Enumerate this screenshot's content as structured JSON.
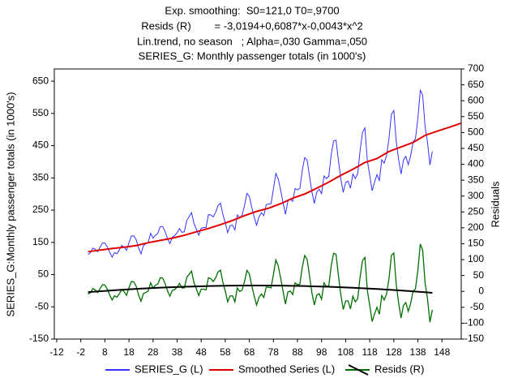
{
  "chart_data": {
    "type": "line",
    "title_lines": [
      "Exp. smoothing:  S0=121,0 T0=,9700",
      "Resids (R)        = -3,0194+0,6087*x-0,0043*x^2",
      "Lin.trend, no season   ; Alpha=,030 Gamma=,050",
      "SERIES_G: Monthly passenger totals (in 1000's)"
    ],
    "ylabel": "SERIES_G:Monthly passenger totals (in 1000's)",
    "y2label": "Residuals",
    "xlim": [
      -13,
      156
    ],
    "xticks": [
      -12,
      -2,
      8,
      18,
      28,
      38,
      48,
      58,
      68,
      78,
      88,
      98,
      108,
      118,
      128,
      138,
      148
    ],
    "ylim": [
      -150,
      688
    ],
    "yticks": [
      -150,
      -50,
      50,
      150,
      250,
      350,
      450,
      550,
      650
    ],
    "y2lim": [
      -150,
      700
    ],
    "y2ticks": [
      -150,
      -100,
      -50,
      0,
      50,
      100,
      150,
      200,
      250,
      300,
      350,
      400,
      450,
      500,
      550,
      600,
      650,
      700
    ],
    "grid": false,
    "legend": "bottom",
    "x": [
      1,
      2,
      3,
      4,
      5,
      6,
      7,
      8,
      9,
      10,
      11,
      12,
      13,
      14,
      15,
      16,
      17,
      18,
      19,
      20,
      21,
      22,
      23,
      24,
      25,
      26,
      27,
      28,
      29,
      30,
      31,
      32,
      33,
      34,
      35,
      36,
      37,
      38,
      39,
      40,
      41,
      42,
      43,
      44,
      45,
      46,
      47,
      48,
      49,
      50,
      51,
      52,
      53,
      54,
      55,
      56,
      57,
      58,
      59,
      60,
      61,
      62,
      63,
      64,
      65,
      66,
      67,
      68,
      69,
      70,
      71,
      72,
      73,
      74,
      75,
      76,
      77,
      78,
      79,
      80,
      81,
      82,
      83,
      84,
      85,
      86,
      87,
      88,
      89,
      90,
      91,
      92,
      93,
      94,
      95,
      96,
      97,
      98,
      99,
      100,
      101,
      102,
      103,
      104,
      105,
      106,
      107,
      108,
      109,
      110,
      111,
      112,
      113,
      114,
      115,
      116,
      117,
      118,
      119,
      120,
      121,
      122,
      123,
      124,
      125,
      126,
      127,
      128,
      129,
      130,
      131,
      132,
      133,
      134,
      135,
      136,
      137,
      138,
      139,
      140,
      141,
      142,
      143,
      144
    ],
    "series": [
      {
        "name": "SERIES_G (L)",
        "color": "#3333ff",
        "axis": "y",
        "values": [
          112,
          118,
          132,
          129,
          121,
          135,
          148,
          148,
          136,
          119,
          104,
          118,
          115,
          126,
          141,
          135,
          125,
          149,
          170,
          170,
          158,
          133,
          114,
          140,
          145,
          150,
          178,
          163,
          172,
          178,
          199,
          199,
          184,
          162,
          146,
          166,
          171,
          180,
          193,
          181,
          183,
          218,
          230,
          242,
          209,
          191,
          172,
          194,
          196,
          196,
          236,
          235,
          229,
          243,
          264,
          272,
          237,
          211,
          180,
          201,
          204,
          188,
          235,
          227,
          234,
          264,
          302,
          293,
          259,
          229,
          203,
          229,
          242,
          233,
          267,
          269,
          270,
          315,
          364,
          347,
          312,
          274,
          237,
          278,
          284,
          277,
          317,
          313,
          318,
          374,
          413,
          405,
          355,
          306,
          271,
          306,
          315,
          301,
          356,
          348,
          355,
          422,
          465,
          467,
          404,
          347,
          305,
          336,
          340,
          318,
          362,
          348,
          363,
          435,
          491,
          505,
          404,
          359,
          310,
          337,
          360,
          342,
          406,
          396,
          420,
          472,
          548,
          559,
          463,
          407,
          362,
          405,
          417,
          391,
          419,
          461,
          472,
          535,
          622,
          606,
          508,
          461,
          390,
          432
        ]
      },
      {
        "name": "Smoothed Series (L)",
        "color": "#e00000",
        "axis": "y",
        "x": [
          1,
          6,
          11,
          16,
          21,
          26,
          31,
          36,
          41,
          46,
          51,
          56,
          61,
          66,
          71,
          76,
          81,
          86,
          91,
          96,
          101,
          106,
          111,
          116,
          121,
          126,
          131,
          136,
          141,
          146,
          151,
          156
        ],
        "values": [
          121,
          126,
          131,
          135,
          140,
          149,
          156,
          163,
          172,
          183,
          193,
          205,
          218,
          233,
          246,
          256,
          270,
          287,
          300,
          318,
          337,
          358,
          377,
          398,
          410,
          432,
          446,
          460,
          482,
          495,
          507,
          520
        ]
      },
      {
        "name": "Resids (R)",
        "color": "#007000",
        "axis": "y2",
        "values": [
          -9,
          -4,
          9,
          5,
          -4,
          9,
          21,
          20,
          7,
          -11,
          -27,
          -14,
          -18,
          -8,
          6,
          -1,
          -12,
          11,
          31,
          30,
          16,
          -11,
          -31,
          -7,
          -3,
          1,
          27,
          11,
          19,
          23,
          43,
          42,
          25,
          2,
          -15,
          3,
          6,
          13,
          25,
          11,
          11,
          44,
          54,
          64,
          28,
          8,
          -13,
          7,
          7,
          5,
          43,
          40,
          31,
          43,
          61,
          67,
          29,
          1,
          -33,
          -14,
          -14,
          -33,
          11,
          0,
          4,
          31,
          66,
          55,
          18,
          -14,
          -43,
          -19,
          -8,
          -19,
          13,
          13,
          11,
          53,
          99,
          80,
          42,
          1,
          -40,
          -2,
          1,
          -10,
          27,
          21,
          23,
          77,
          113,
          101,
          48,
          -5,
          -43,
          -12,
          -7,
          -25,
          27,
          15,
          18,
          81,
          120,
          117,
          50,
          -11,
          -57,
          -30,
          -30,
          -55,
          -15,
          -33,
          -23,
          45,
          97,
          107,
          4,
          -44,
          -95,
          -71,
          -50,
          -72,
          -13,
          -27,
          -8,
          40,
          113,
          121,
          22,
          -36,
          -84,
          -44,
          -35,
          -63,
          -38,
          1,
          8,
          67,
          149,
          129,
          26,
          -23,
          -97,
          -58
        ]
      }
    ],
    "trend_line": {
      "color": "#000000",
      "axis": "y2",
      "x": [
        1,
        11,
        21,
        31,
        41,
        51,
        61,
        71,
        81,
        91,
        101,
        111,
        121,
        131,
        141,
        144
      ],
      "values": [
        -2.41,
        3.16,
        7.86,
        11.72,
        14.71,
        16.84,
        18.11,
        18.52,
        18.07,
        16.76,
        14.6,
        11.57,
        7.67,
        2.93,
        -2.68,
        -4.53
      ]
    }
  }
}
